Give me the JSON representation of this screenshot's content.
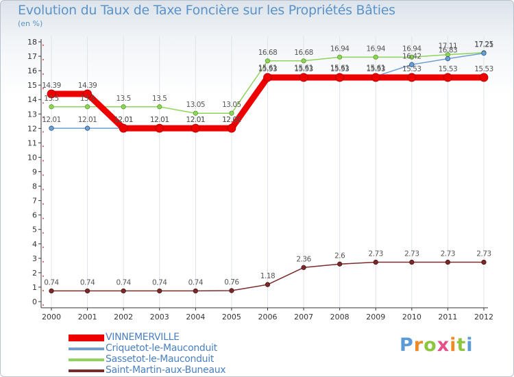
{
  "chart_data": {
    "type": "line",
    "title": "Evolution du Taux de Taxe Foncière sur les Propriétés Bâties",
    "ylabel": "(en %)",
    "xlabel": "",
    "x": [
      "2000",
      "2001",
      "2002",
      "2003",
      "2004",
      "2005",
      "2006",
      "2007",
      "2008",
      "2009",
      "2010",
      "2011",
      "2012"
    ],
    "ylim": [
      0,
      18
    ],
    "yticks": [
      "0",
      "1",
      "2",
      "3",
      "4",
      "5",
      "6",
      "7",
      "8",
      "9",
      "10",
      "11",
      "12",
      "13",
      "14",
      "15",
      "16",
      "17",
      "18"
    ],
    "series": [
      {
        "name": "VINNEMERVILLE",
        "color": "#ee0000",
        "values": [
          14.39,
          14.39,
          12.01,
          12.01,
          12.01,
          12.01,
          15.53,
          15.53,
          15.53,
          15.53,
          15.53,
          15.53,
          15.53
        ],
        "labels": [
          "14.39",
          "14.39",
          "12.01",
          "12.01",
          "12.01",
          "12.01",
          "15.53",
          "15.53",
          "15.53",
          "15.53",
          "15.53",
          "15.53",
          "15.53"
        ]
      },
      {
        "name": "Criquetot-le-Mauconduit",
        "color": "#6f9fd0",
        "values": [
          12.01,
          12.01,
          12.01,
          12.01,
          12.01,
          12.01,
          15.61,
          15.61,
          15.61,
          15.61,
          16.42,
          16.83,
          17.21
        ],
        "labels": [
          "12.01",
          "12.01",
          "12.01",
          "12.01",
          "12.01",
          "12.01",
          "15.61",
          "15.61",
          "15.61",
          "15.61",
          "16.42",
          "16.83",
          "17.21"
        ]
      },
      {
        "name": "Sassetot-le-Mauconduit",
        "color": "#8fd45a",
        "values": [
          13.5,
          13.5,
          13.5,
          13.5,
          13.05,
          13.05,
          16.68,
          16.68,
          16.94,
          16.94,
          16.94,
          17.11,
          17.25
        ],
        "labels": [
          "13.5",
          "13.5",
          "13.5",
          "13.5",
          "13.05",
          "13.05",
          "16.68",
          "16.68",
          "16.94",
          "16.94",
          "16.94",
          "17.11",
          "17.25"
        ]
      },
      {
        "name": "Saint-Martin-aux-Buneaux",
        "color": "#7a2a2a",
        "values": [
          0.74,
          0.74,
          0.74,
          0.74,
          0.74,
          0.76,
          1.18,
          2.36,
          2.6,
          2.73,
          2.73,
          2.73,
          2.73
        ],
        "labels": [
          "0.74",
          "0.74",
          "0.74",
          "0.74",
          "0.74",
          "0.76",
          "1.18",
          "2.36",
          "2.6",
          "2.73",
          "2.73",
          "2.73",
          "2.73"
        ]
      }
    ]
  },
  "legend": {
    "items": [
      {
        "label": "VINNEMERVILLE",
        "color": "#ee0000"
      },
      {
        "label": "Criquetot-le-Mauconduit",
        "color": "#6f9fd0"
      },
      {
        "label": "Sassetot-le-Mauconduit",
        "color": "#8fd45a"
      },
      {
        "label": "Saint-Martin-aux-Buneaux",
        "color": "#7a2a2a"
      }
    ]
  },
  "logo": {
    "letters": [
      "P",
      "r",
      "o",
      "x",
      "i",
      "t",
      "i"
    ],
    "colors": [
      "#5b9bd5",
      "#f08a24",
      "#8cc63f",
      "#e84e8a",
      "#f08a24",
      "#8cc63f",
      "#5b9bd5"
    ]
  }
}
